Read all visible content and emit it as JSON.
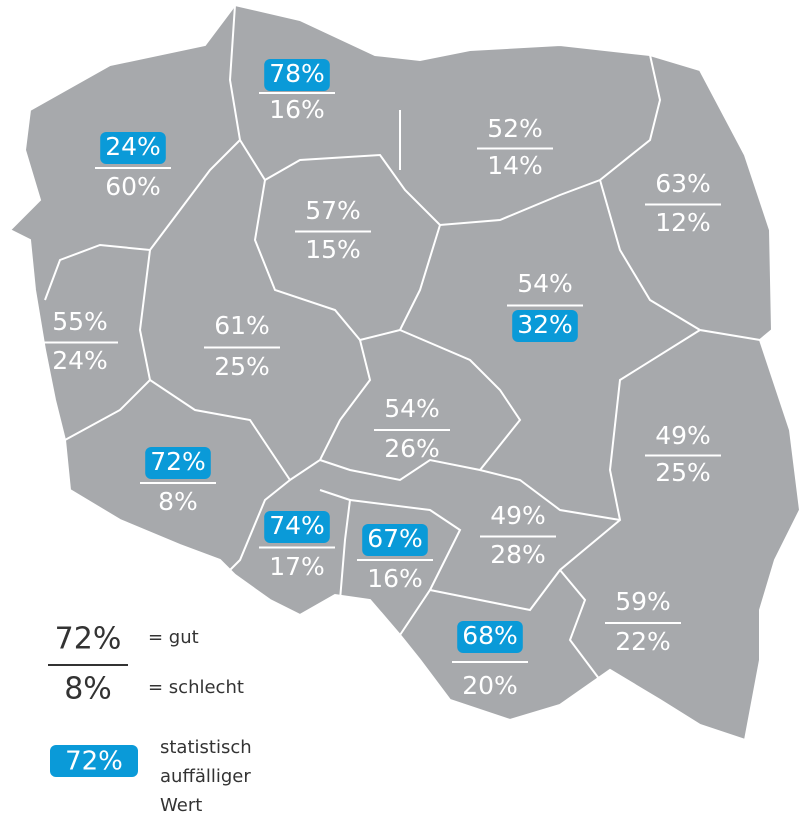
{
  "regions": [
    {
      "good": "78%",
      "bad": "16%",
      "highlight": "good"
    },
    {
      "good": "24%",
      "bad": "60%",
      "highlight": "good"
    },
    {
      "good": "52%",
      "bad": "14%"
    },
    {
      "good": "63%",
      "bad": "12%"
    },
    {
      "good": "57%",
      "bad": "15%"
    },
    {
      "good": "54%",
      "bad": "32%",
      "highlight": "bad"
    },
    {
      "good": "55%",
      "bad": "24%"
    },
    {
      "good": "61%",
      "bad": "25%"
    },
    {
      "good": "54%",
      "bad": "26%"
    },
    {
      "good": "49%",
      "bad": "25%"
    },
    {
      "good": "72%",
      "bad": "8%",
      "highlight": "good"
    },
    {
      "good": "74%",
      "bad": "17%",
      "highlight": "good"
    },
    {
      "good": "67%",
      "bad": "16%",
      "highlight": "good"
    },
    {
      "good": "49%",
      "bad": "28%"
    },
    {
      "good": "59%",
      "bad": "22%"
    },
    {
      "good": "68%",
      "bad": "20%",
      "highlight": "good"
    }
  ],
  "legend": {
    "good_sample": "72%",
    "good_label": "= gut",
    "bad_sample": "8%",
    "bad_label": "= schlecht",
    "highlight_sample": "72%",
    "highlight_label": [
      "statistisch",
      "auffälliger",
      "Wert"
    ]
  }
}
